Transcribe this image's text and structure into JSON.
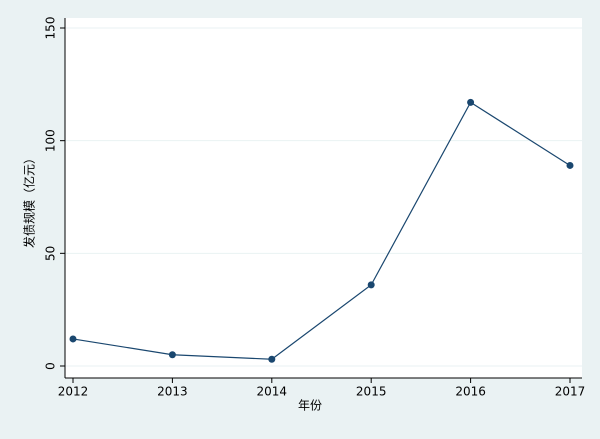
{
  "chart_data": {
    "type": "line",
    "x": [
      2012,
      2013,
      2014,
      2015,
      2016,
      2017
    ],
    "values": [
      12,
      5,
      3,
      36,
      117,
      89
    ],
    "color": "#1a476f",
    "xlim": [
      2012,
      2017
    ],
    "xticks": [
      2012,
      2013,
      2014,
      2015,
      2016,
      2017
    ],
    "ylim": [
      0,
      150
    ],
    "yticks": [
      0,
      50,
      100,
      150
    ],
    "grid": true,
    "xlabel": "年份",
    "ylabel": "发债规模（亿元）"
  }
}
